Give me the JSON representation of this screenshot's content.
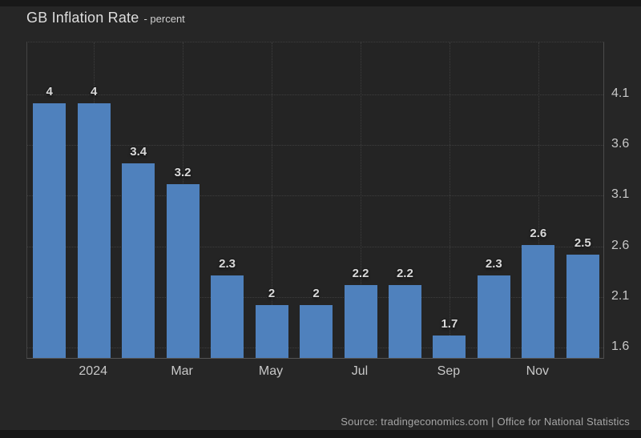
{
  "header": {
    "title": "GB Inflation Rate",
    "subtitle": "- percent"
  },
  "footer": {
    "source": "Source: tradingeconomics.com | Office for National Statistics"
  },
  "colors": {
    "bar": "#4f81bd",
    "page_bg": "#181818",
    "panel_bg": "#262626",
    "plot_bg": "#242424",
    "grid": "#3e3e3e",
    "bar_label": "#d9d9d9",
    "tick_label": "#c8c8c8",
    "title": "#dedede",
    "source": "#a6a6a6"
  },
  "chart_data": {
    "type": "bar",
    "title": "GB Inflation Rate",
    "ylabel": "percent",
    "categories": [
      "",
      "2024",
      "",
      "Mar",
      "",
      "May",
      "",
      "Jul",
      "",
      "Sep",
      "",
      "Nov",
      ""
    ],
    "values": [
      4,
      4,
      3.4,
      3.2,
      2.3,
      2,
      2,
      2.2,
      2.2,
      1.7,
      2.3,
      2.6,
      2.5
    ],
    "bar_labels": [
      "4",
      "4",
      "3.4",
      "3.2",
      "2.3",
      "2",
      "2",
      "2.2",
      "2.2",
      "1.7",
      "2.3",
      "2.6",
      "2.5"
    ],
    "yticks": [
      4.1,
      3.6,
      3.1,
      2.6,
      2.1,
      1.6
    ],
    "ylim": [
      1.481,
      4.614
    ],
    "grid": "dotted",
    "y_axis_position": "right",
    "legend": "none"
  }
}
